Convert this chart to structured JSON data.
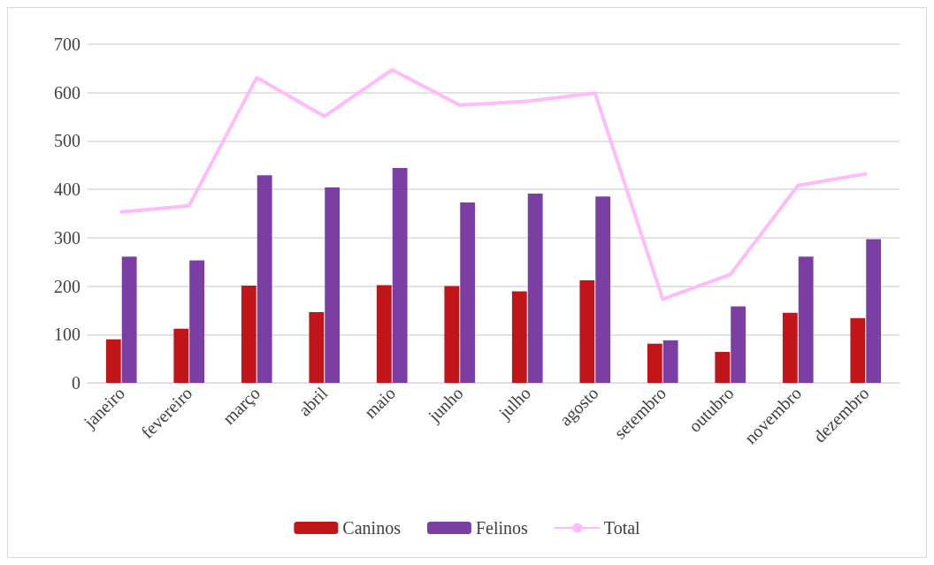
{
  "chart_data": {
    "type": "bar",
    "categories": [
      "janeiro",
      "fevereiro",
      "março",
      "abril",
      "maio",
      "junho",
      "julho",
      "agosto",
      "setembro",
      "outubro",
      "novembro",
      "dezembro"
    ],
    "series": [
      {
        "name": "Caninos",
        "color": "#c0161a",
        "values": [
          90,
          112,
          201,
          146,
          202,
          200,
          189,
          212,
          81,
          64,
          145,
          134
        ]
      },
      {
        "name": "Felinos",
        "color": "#7b3fa3",
        "values": [
          261,
          253,
          429,
          404,
          444,
          373,
          391,
          385,
          88,
          158,
          261,
          297
        ]
      },
      {
        "name": "Total",
        "type": "line",
        "color": "#ffbbfa",
        "values": [
          353,
          366,
          631,
          551,
          647,
          574,
          582,
          599,
          173,
          224,
          408,
          432
        ]
      }
    ],
    "ylim": [
      0,
      700
    ],
    "yticks": [
      0,
      100,
      200,
      300,
      400,
      500,
      600,
      700
    ],
    "grid": "y",
    "legend": "bottom",
    "marker": "none",
    "line_style": "solid"
  }
}
